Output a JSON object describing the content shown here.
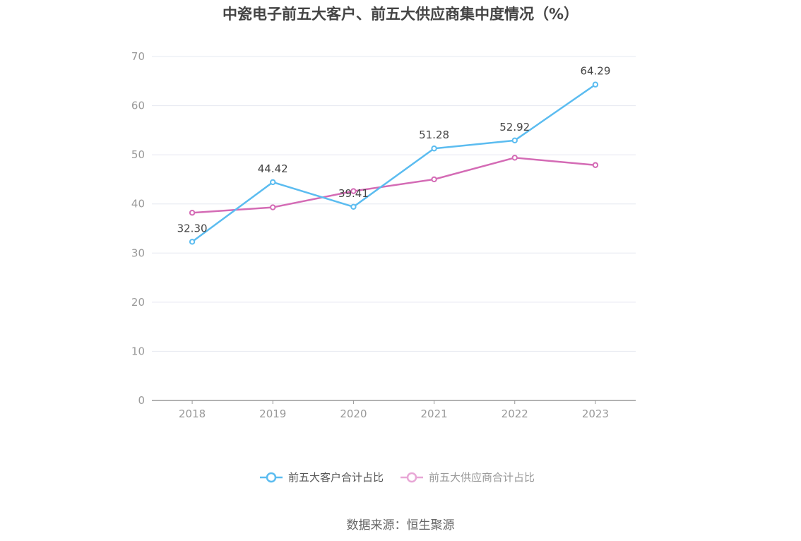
{
  "title": "中瓷电子前五大客户、前五大供应商集中度情况（%）",
  "source": "数据来源：恒生聚源",
  "chart_data": {
    "type": "line",
    "title": "中瓷电子前五大客户、前五大供应商集中度情况（%）",
    "xlabel": "",
    "ylabel": "",
    "categories": [
      "2018",
      "2019",
      "2020",
      "2021",
      "2022",
      "2023"
    ],
    "ylim": [
      0,
      70
    ],
    "yticks": [
      0,
      10,
      20,
      30,
      40,
      50,
      60,
      70
    ],
    "grid": true,
    "legend_position": "bottom",
    "series": [
      {
        "name": "前五大客户合计占比",
        "values": [
          32.3,
          44.42,
          39.41,
          51.28,
          52.92,
          64.29
        ],
        "labels": [
          "32.30",
          "44.42",
          "39.41",
          "51.28",
          "52.92",
          "64.29"
        ],
        "color": "#5bbcf0"
      },
      {
        "name": "前五大供应商合计占比",
        "values": [
          38.2,
          39.3,
          42.6,
          45.0,
          49.4,
          47.9
        ],
        "color": "#d46bb5"
      }
    ]
  }
}
